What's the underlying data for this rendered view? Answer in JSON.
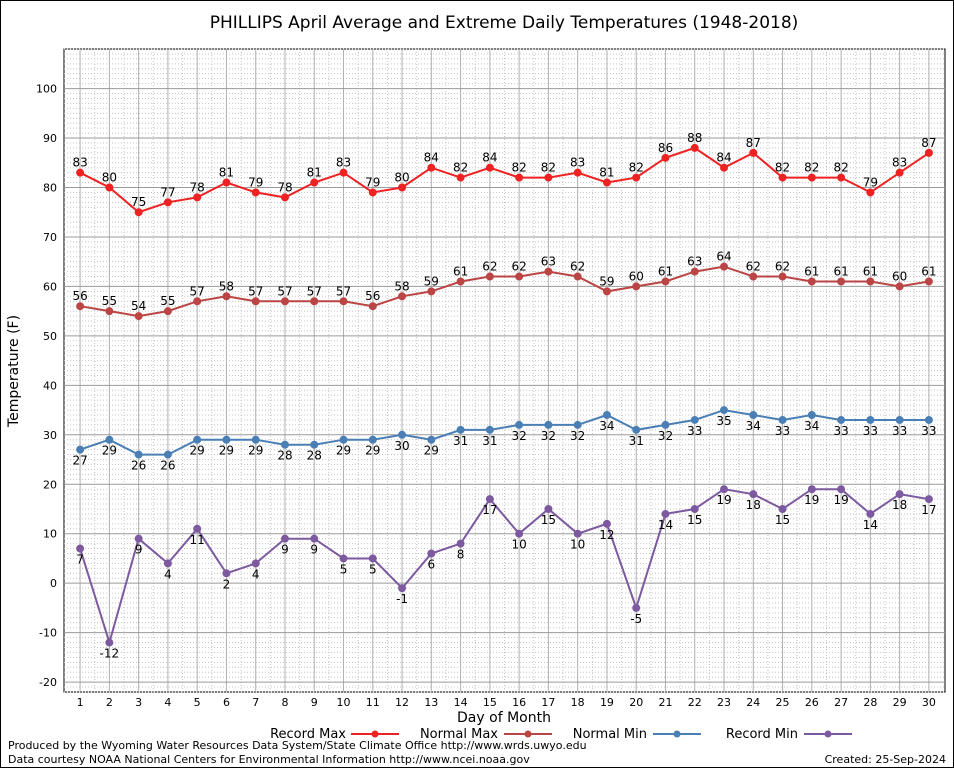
{
  "chart_data": {
    "type": "line",
    "title": "PHILLIPS April Average and Extreme Daily Temperatures (1948-2018)",
    "xlabel": "Day of Month",
    "ylabel": "Temperature (F)",
    "xlim": [
      1,
      30
    ],
    "ylim": [
      -22,
      108
    ],
    "yticks": [
      -20,
      -10,
      0,
      10,
      20,
      30,
      40,
      50,
      60,
      70,
      80,
      90,
      100
    ],
    "x": [
      1,
      2,
      3,
      4,
      5,
      6,
      7,
      8,
      9,
      10,
      11,
      12,
      13,
      14,
      15,
      16,
      17,
      18,
      19,
      20,
      21,
      22,
      23,
      24,
      25,
      26,
      27,
      28,
      29,
      30
    ],
    "grid": true,
    "legend_position": "bottom",
    "series": [
      {
        "name": "Record Max",
        "color": "#ee2222",
        "label_pos": "above",
        "values": [
          83,
          80,
          75,
          77,
          78,
          81,
          79,
          78,
          81,
          83,
          79,
          80,
          84,
          82,
          84,
          82,
          82,
          83,
          81,
          82,
          86,
          88,
          84,
          87,
          82,
          82,
          82,
          79,
          83,
          87
        ]
      },
      {
        "name": "Normal Max",
        "color": "#bb4444",
        "label_pos": "above",
        "values": [
          56,
          55,
          54,
          55,
          57,
          58,
          57,
          57,
          57,
          57,
          56,
          58,
          59,
          61,
          62,
          62,
          63,
          62,
          59,
          60,
          61,
          63,
          64,
          62,
          62,
          61,
          61,
          61,
          60,
          61
        ]
      },
      {
        "name": "Normal Min",
        "color": "#4a7fb5",
        "label_pos": "below",
        "values": [
          27,
          29,
          26,
          26,
          29,
          29,
          29,
          28,
          28,
          29,
          29,
          30,
          29,
          31,
          31,
          32,
          32,
          32,
          34,
          31,
          32,
          33,
          35,
          34,
          33,
          34,
          33,
          33,
          33,
          33
        ]
      },
      {
        "name": "Record Min",
        "color": "#7d5aa0",
        "label_pos": "below",
        "values": [
          7,
          -12,
          9,
          4,
          11,
          2,
          4,
          9,
          9,
          5,
          5,
          -1,
          6,
          8,
          17,
          10,
          15,
          10,
          12,
          -5,
          14,
          15,
          19,
          18,
          15,
          19,
          19,
          14,
          18,
          17
        ]
      }
    ]
  },
  "footer": {
    "credit1": "Produced by the Wyoming Water Resources Data System/State Climate Office http://www.wrds.uwyo.edu",
    "credit2": "Data courtesy NOAA National Centers for Environmental Information http://www.ncei.noaa.gov",
    "created": "Created:  25-Sep-2024"
  }
}
